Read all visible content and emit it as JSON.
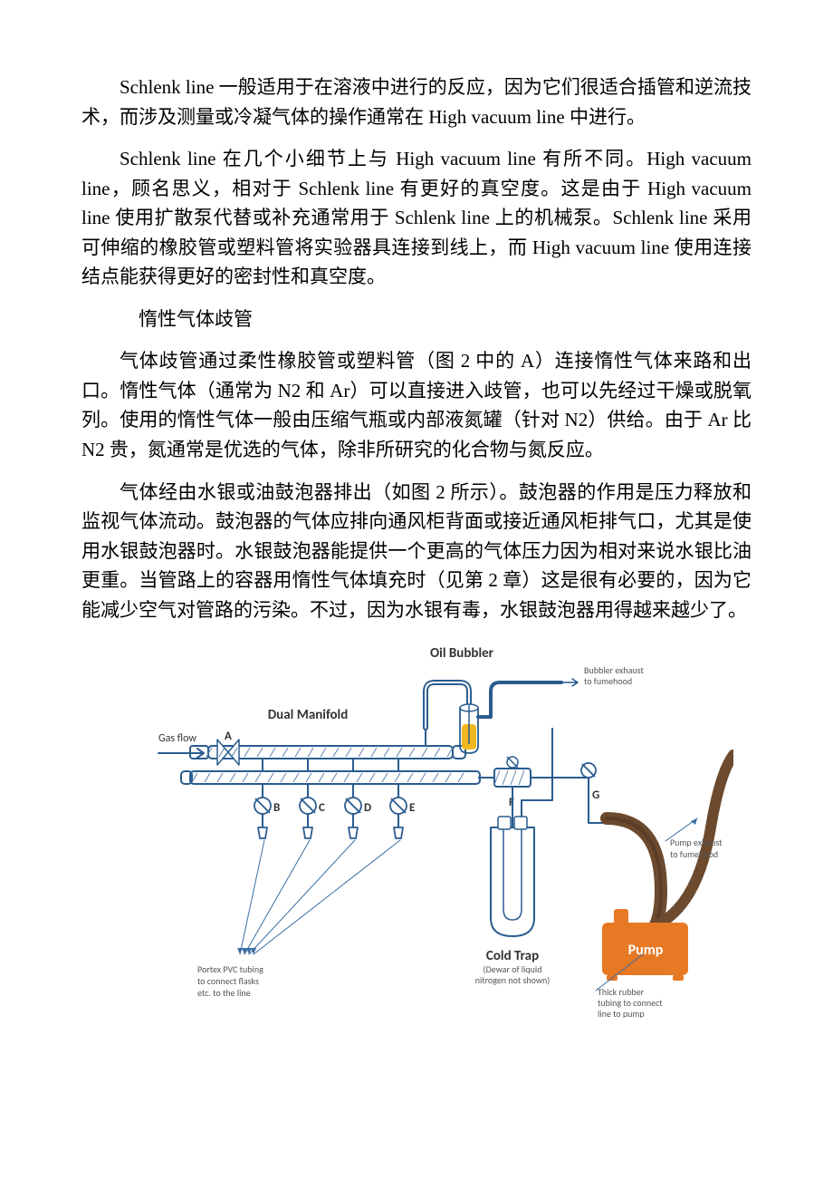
{
  "paragraphs": {
    "p1": "Schlenk line 一般适用于在溶液中进行的反应，因为它们很适合插管和逆流技术，而涉及测量或冷凝气体的操作通常在 High vacuum line 中进行。",
    "p2": "Schlenk line 在几个小细节上与 High vacuum line 有所不同。High vacuum line，顾名思义，相对于 Schlenk line 有更好的真空度。这是由于 High vacuum line 使用扩散泵代替或补充通常用于 Schlenk line 上的机械泵。Schlenk line 采用可伸缩的橡胶管或塑料管将实验器具连接到线上，而 High vacuum line 使用连接结点能获得更好的密封性和真空度。",
    "h1": "惰性气体歧管",
    "p3": "气体歧管通过柔性橡胶管或塑料管（图 2 中的 A）连接惰性气体来路和出口。惰性气体（通常为 N2 和 Ar）可以直接进入歧管，也可以先经过干燥或脱氧列。使用的惰性气体一般由压缩气瓶或内部液氮罐（针对 N2）供给。由于 Ar 比 N2 贵，氮通常是优选的气体，除非所研究的化合物与氮反应。",
    "p4": "气体经由水银或油鼓泡器排出（如图 2 所示）。鼓泡器的作用是压力释放和监视气体流动。鼓泡器的气体应排向通风柜背面或接近通风柜排气口，尤其是使用水银鼓泡器时。水银鼓泡器能提供一个更高的气体压力因为相对来说水银比油更重。当管路上的容器用惰性气体填充时（见第 2 章）这是很有必要的，因为它能减少空气对管路的污染。不过，因为水银有毒，水银鼓泡器用得越来越少了。"
  },
  "diagram": {
    "labels": {
      "oil_bubbler": "Oil Bubbler",
      "bubbler_exhaust_1": "Bubbler exhaust",
      "bubbler_exhaust_2": "to fumehood",
      "dual_manifold": "Dual Manifold",
      "gas_flow": "Gas flow",
      "portex_1": "Portex PVC tubing",
      "portex_2": "to connect flasks",
      "portex_3": "etc. to the line",
      "cold_trap": "Cold Trap",
      "cold_trap_sub1": "(Dewar of liquid",
      "cold_trap_sub2": "nitrogen not shown)",
      "pump": "Pump",
      "pump_exhaust_1": "Pump exhaust",
      "pump_exhaust_2": "to fumehood",
      "thick_1": "Thick rubber",
      "thick_2": "tubing to connect",
      "thick_3": "line to pump",
      "A": "A",
      "B": "B",
      "C": "C",
      "D": "D",
      "E": "E",
      "F": "F",
      "G": "G"
    },
    "colors": {
      "outline": "#2a5c8f",
      "outline_dark": "#1f4a73",
      "blue_hatch": "#5a82ac",
      "oil": "#f0b81e",
      "pump_fill": "#e77824",
      "pump_text": "#ffffff",
      "tube_brown": "#6b4a2e",
      "tube_brown_dark": "#5a3e27",
      "label_text": "#333333",
      "label_sub": "#555555",
      "arrow": "#2a5c8f",
      "thin_arrow": "#3b6fa3"
    },
    "fonts": {
      "title": 15,
      "label": 12,
      "sub": 10,
      "tap": 13
    }
  }
}
